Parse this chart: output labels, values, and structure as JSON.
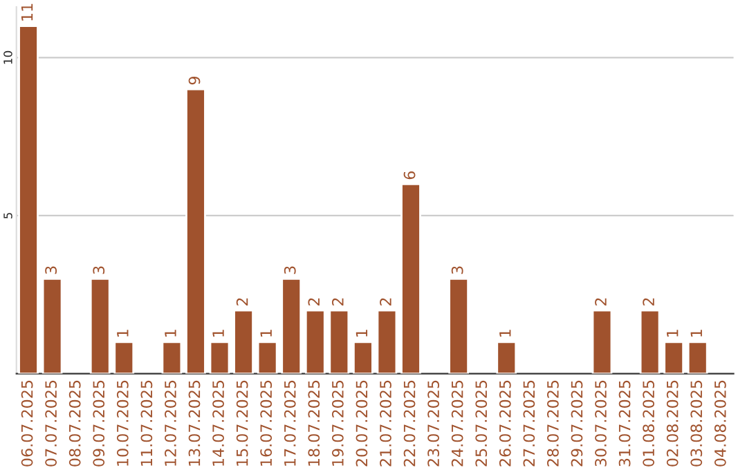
{
  "chart_data": {
    "type": "bar",
    "categories": [
      "06.07.2025",
      "07.07.2025",
      "08.07.2025",
      "09.07.2025",
      "10.07.2025",
      "11.07.2025",
      "12.07.2025",
      "13.07.2025",
      "14.07.2025",
      "15.07.2025",
      "16.07.2025",
      "17.07.2025",
      "18.07.2025",
      "19.07.2025",
      "20.07.2025",
      "21.07.2025",
      "22.07.2025",
      "23.07.2025",
      "24.07.2025",
      "25.07.2025",
      "26.07.2025",
      "27.07.2025",
      "28.07.2025",
      "29.07.2025",
      "30.07.2025",
      "31.07.2025",
      "01.08.2025",
      "02.08.2025",
      "03.08.2025",
      "04.08.2025"
    ],
    "values": [
      11,
      3,
      null,
      3,
      1,
      null,
      1,
      9,
      1,
      2,
      1,
      3,
      2,
      2,
      1,
      2,
      6,
      null,
      3,
      null,
      1,
      null,
      null,
      null,
      2,
      null,
      2,
      1,
      1,
      null
    ],
    "value_labels": [
      "11",
      "3",
      null,
      "3",
      "1",
      null,
      "1",
      "9",
      "1",
      "2",
      "1",
      "3",
      "2",
      "2",
      "1",
      "2",
      "6",
      null,
      "3",
      null,
      "1",
      null,
      null,
      null,
      "2",
      null,
      "2",
      "1",
      "1",
      null
    ],
    "color": "#a0522d",
    "ylim": [
      0,
      11.6
    ],
    "yticks": [
      5,
      10
    ],
    "grid": "y",
    "legend": false
  }
}
